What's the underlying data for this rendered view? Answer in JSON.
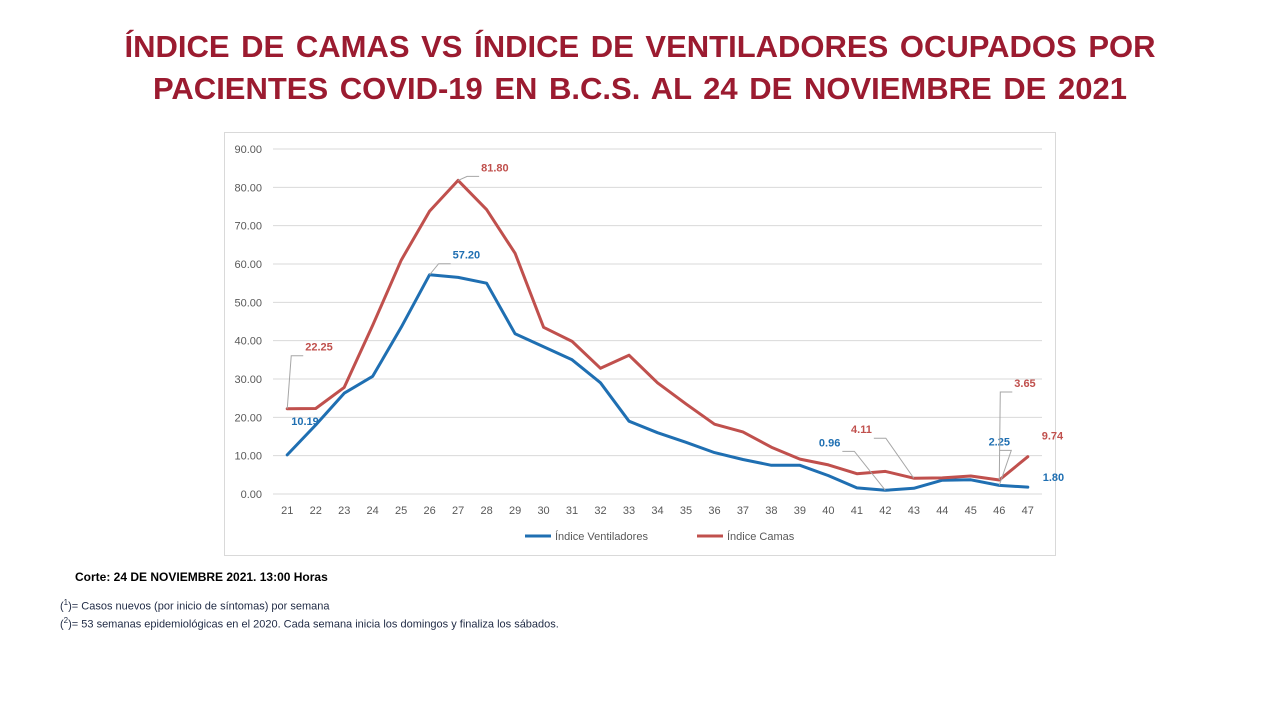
{
  "title_line1": "ÍNDICE DE CAMAS VS ÍNDICE DE VENTILADORES OCUPADOS POR",
  "title_line2": "PACIENTES COVID-19 EN B.C.S. AL 24 DE NOVIEMBRE DE 2021",
  "footer": {
    "corte": "Corte: 24 DE NOVIEMBRE 2021. 13:00 Horas",
    "note1_sup": "1",
    "note1_text": "= Casos nuevos (por inicio de síntomas) por semana",
    "note2_sup": "2",
    "note2_text": "= 53 semanas epidemiológicas en el 2020. Cada semana inicia los domingos y finaliza los sábados."
  },
  "chart_data": {
    "type": "line",
    "categories": [
      "21",
      "22",
      "23",
      "24",
      "25",
      "26",
      "27",
      "28",
      "29",
      "30",
      "31",
      "32",
      "33",
      "34",
      "35",
      "36",
      "37",
      "38",
      "39",
      "40",
      "41",
      "42",
      "43",
      "44",
      "45",
      "46",
      "47"
    ],
    "ylim": [
      0,
      90
    ],
    "yticks": [
      "0.00",
      "10.00",
      "20.00",
      "30.00",
      "40.00",
      "50.00",
      "60.00",
      "70.00",
      "80.00",
      "90.00"
    ],
    "grid": true,
    "legend_position": "bottom",
    "series": [
      {
        "name": "Índice Ventiladores",
        "color": "#1f6fb2",
        "values": [
          10.19,
          18.0,
          26.3,
          30.7,
          43.5,
          57.2,
          56.5,
          55.0,
          41.8,
          38.4,
          35.0,
          29.0,
          19.0,
          16.0,
          13.5,
          10.8,
          9.0,
          7.5,
          7.5,
          4.8,
          1.6,
          0.96,
          1.5,
          3.6,
          3.7,
          2.25,
          1.8
        ]
      },
      {
        "name": "Índice Camas",
        "color": "#c0504d",
        "values": [
          22.25,
          22.3,
          27.8,
          44.0,
          61.0,
          73.8,
          81.8,
          74.2,
          62.8,
          43.5,
          39.8,
          32.8,
          36.2,
          29.0,
          23.5,
          18.2,
          16.2,
          12.2,
          9.1,
          7.6,
          5.3,
          5.9,
          4.11,
          4.2,
          4.7,
          3.65,
          9.74
        ]
      }
    ],
    "annotations": [
      {
        "series": 1,
        "index": 0,
        "text": "22.25"
      },
      {
        "series": 0,
        "index": 0,
        "text": "10.19"
      },
      {
        "series": 1,
        "index": 6,
        "text": "81.80"
      },
      {
        "series": 0,
        "index": 5,
        "text": "57.20"
      },
      {
        "series": 0,
        "index": 21,
        "text": "0.96"
      },
      {
        "series": 1,
        "index": 22,
        "text": "4.11"
      },
      {
        "series": 0,
        "index": 25,
        "text": "2.25"
      },
      {
        "series": 1,
        "index": 25,
        "text": "3.65"
      },
      {
        "series": 1,
        "index": 26,
        "text": "9.74"
      },
      {
        "series": 0,
        "index": 26,
        "text": "1.80"
      }
    ]
  }
}
